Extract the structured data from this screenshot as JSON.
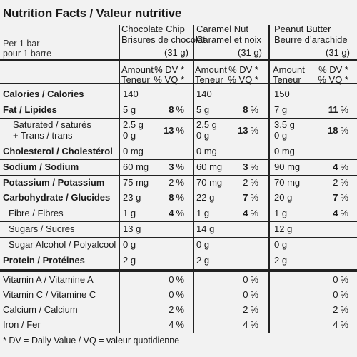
{
  "title": "Nutrition Facts / Valeur nutritive",
  "serving": {
    "line1": "Per 1 bar",
    "line2": "pour 1 barre"
  },
  "products": [
    {
      "name1": "Chocolate Chip",
      "name2": "Brisures de chocolat",
      "size": "(31 g)"
    },
    {
      "name1": "Caramel Nut",
      "name2": "Caramel et noix",
      "size": "(31 g)"
    },
    {
      "name1": "Peanut Butter",
      "name2": "Beurre d’arachide",
      "size": "(31 g)"
    }
  ],
  "colhead": {
    "amount": "Amount",
    "teneur": "Teneur",
    "dv": "% DV *",
    "vq": "% VQ *"
  },
  "rows": {
    "calories": {
      "label": "Calories / Calories",
      "v": [
        "140",
        "140",
        "150"
      ]
    },
    "fat": {
      "label": "Fat / Lipides",
      "v": [
        "5 g",
        "5 g",
        "7 g"
      ],
      "p": [
        "8",
        "8",
        "11"
      ]
    },
    "sat": {
      "label1": "Saturated / saturés",
      "label2": "+ Trans / trans",
      "v": [
        "2.5 g",
        "2.5 g",
        "3.5 g"
      ],
      "t": [
        "0 g",
        "0 g",
        "0 g"
      ],
      "p": [
        "13",
        "13",
        "18"
      ]
    },
    "chol": {
      "label": "Cholesterol / Cholestérol",
      "v": [
        "0 mg",
        "0 mg",
        "0 mg"
      ]
    },
    "sodium": {
      "label": "Sodium / Sodium",
      "v": [
        "60 mg",
        "60 mg",
        "90 mg"
      ],
      "p": [
        "3",
        "3",
        "4"
      ]
    },
    "potassium": {
      "label": "Potassium / Potassium",
      "v": [
        "75 mg",
        "70 mg",
        "70 mg"
      ],
      "p": [
        "2",
        "2",
        "2"
      ]
    },
    "carb": {
      "label": "Carbohydrate / Glucides",
      "v": [
        "23 g",
        "22 g",
        "20 g"
      ],
      "p": [
        "8",
        "7",
        "7"
      ]
    },
    "fibre": {
      "label": "Fibre / Fibres",
      "v": [
        "1 g",
        "1 g",
        "1 g"
      ],
      "p": [
        "4",
        "4",
        "4"
      ]
    },
    "sugars": {
      "label": "Sugars / Sucres",
      "v": [
        "13 g",
        "14 g",
        "12 g"
      ]
    },
    "sugaralc": {
      "label": "Sugar Alcohol / Polyalcool",
      "v": [
        "0 g",
        "0 g",
        "0 g"
      ]
    },
    "protein": {
      "label": "Protein / Protéines",
      "v": [
        "2 g",
        "2 g",
        "2 g"
      ]
    },
    "vita": {
      "label": "Vitamin A / Vitamine A",
      "p": [
        "0",
        "0",
        "0"
      ]
    },
    "vitc": {
      "label": "Vitamin C / Vitamine C",
      "p": [
        "0",
        "0",
        "0"
      ]
    },
    "calcium": {
      "label": "Calcium / Calcium",
      "p": [
        "2",
        "2",
        "2"
      ]
    },
    "iron": {
      "label": "Iron / Fer",
      "p": [
        "4",
        "4",
        "4"
      ]
    }
  },
  "pct_sign": "%",
  "footnote": "* DV = Daily Value / VQ = valeur quotidienne"
}
